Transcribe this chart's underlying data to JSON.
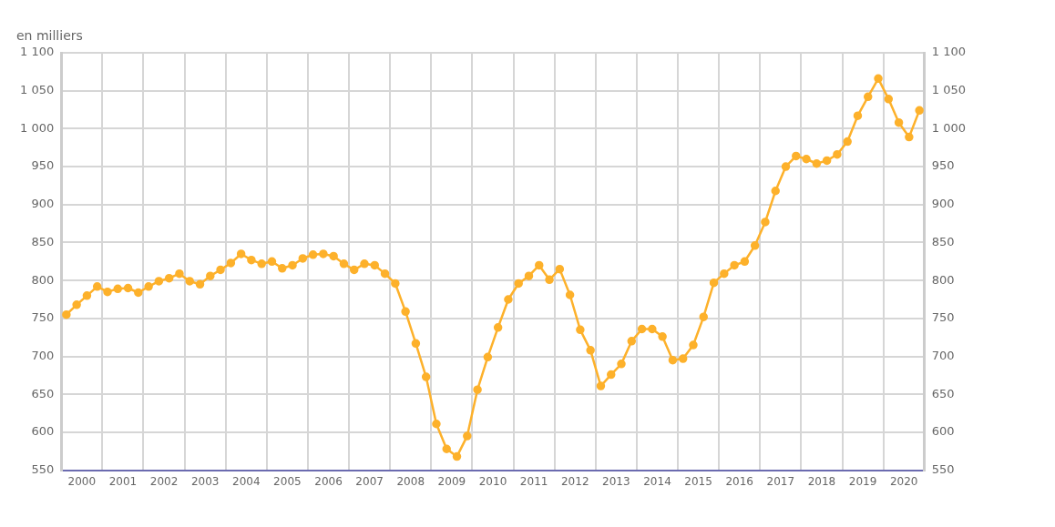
{
  "chart_data": {
    "type": "line",
    "ylabel": "en milliers",
    "x": [
      2000.125,
      2000.375,
      2000.625,
      2000.875,
      2001.125,
      2001.375,
      2001.625,
      2001.875,
      2002.125,
      2002.375,
      2002.625,
      2002.875,
      2003.125,
      2003.375,
      2003.625,
      2003.875,
      2004.125,
      2004.375,
      2004.625,
      2004.875,
      2005.125,
      2005.375,
      2005.625,
      2005.875,
      2006.125,
      2006.375,
      2006.625,
      2006.875,
      2007.125,
      2007.375,
      2007.625,
      2007.875,
      2008.125,
      2008.375,
      2008.625,
      2008.875,
      2009.125,
      2009.375,
      2009.625,
      2009.875,
      2010.125,
      2010.375,
      2010.625,
      2010.875,
      2011.125,
      2011.375,
      2011.625,
      2011.875,
      2012.125,
      2012.375,
      2012.625,
      2012.875,
      2013.125,
      2013.375,
      2013.625,
      2013.875,
      2014.125,
      2014.375,
      2014.625,
      2014.875,
      2015.125,
      2015.375,
      2015.625,
      2015.875,
      2016.125,
      2016.375,
      2016.625,
      2016.875,
      2017.125,
      2017.375,
      2017.625,
      2017.875,
      2018.125,
      2018.375,
      2018.625,
      2018.875,
      2019.125,
      2019.375,
      2019.625,
      2019.875,
      2020.125,
      2020.375,
      2020.625,
      2020.875
    ],
    "series": [
      {
        "color": "#fdb12b",
        "axis": "y",
        "values": [
          755,
          768,
          780,
          792,
          785,
          789,
          790,
          784,
          792,
          799,
          803,
          809,
          799,
          795,
          806,
          814,
          823,
          835,
          827,
          822,
          825,
          816,
          820,
          829,
          834,
          835,
          832,
          822,
          814,
          822,
          820,
          809,
          796,
          759,
          717,
          673,
          611,
          578,
          568,
          595,
          656,
          699,
          738,
          775,
          796,
          806,
          820,
          801,
          815,
          781,
          735,
          708,
          661,
          676,
          690,
          720,
          736,
          736,
          726,
          695,
          697,
          715,
          752,
          797,
          809,
          820,
          825,
          846,
          877,
          918,
          950,
          964,
          960,
          954,
          958,
          966,
          983,
          1017,
          1042,
          1066,
          1039,
          1008,
          989,
          1024
        ]
      }
    ],
    "xlim": [
      2000,
      2021
    ],
    "xticks": [
      {
        "value": 2000,
        "label": null
      },
      {
        "value": 2000.5,
        "label": "2000"
      },
      {
        "value": 2001,
        "label": null
      },
      {
        "value": 2001.5,
        "label": "2001"
      },
      {
        "value": 2002,
        "label": null
      },
      {
        "value": 2002.5,
        "label": "2002"
      },
      {
        "value": 2003,
        "label": null
      },
      {
        "value": 2003.5,
        "label": "2003"
      },
      {
        "value": 2004,
        "label": null
      },
      {
        "value": 2004.5,
        "label": "2004"
      },
      {
        "value": 2005,
        "label": null
      },
      {
        "value": 2005.5,
        "label": "2005"
      },
      {
        "value": 2006,
        "label": null
      },
      {
        "value": 2006.5,
        "label": "2006"
      },
      {
        "value": 2007,
        "label": null
      },
      {
        "value": 2007.5,
        "label": "2007"
      },
      {
        "value": 2008,
        "label": null
      },
      {
        "value": 2008.5,
        "label": "2008"
      },
      {
        "value": 2009,
        "label": null
      },
      {
        "value": 2009.5,
        "label": "2009"
      },
      {
        "value": 2010,
        "label": null
      },
      {
        "value": 2010.5,
        "label": "2010"
      },
      {
        "value": 2011,
        "label": null
      },
      {
        "value": 2011.5,
        "label": "2011"
      },
      {
        "value": 2012,
        "label": null
      },
      {
        "value": 2012.5,
        "label": "2012"
      },
      {
        "value": 2013,
        "label": null
      },
      {
        "value": 2013.5,
        "label": "2013"
      },
      {
        "value": 2014,
        "label": null
      },
      {
        "value": 2014.5,
        "label": "2014"
      },
      {
        "value": 2015,
        "label": null
      },
      {
        "value": 2015.5,
        "label": "2015"
      },
      {
        "value": 2016,
        "label": null
      },
      {
        "value": 2016.5,
        "label": "2016"
      },
      {
        "value": 2017,
        "label": null
      },
      {
        "value": 2017.5,
        "label": "2017"
      },
      {
        "value": 2018,
        "label": null
      },
      {
        "value": 2018.5,
        "label": "2018"
      },
      {
        "value": 2019,
        "label": null
      },
      {
        "value": 2019.5,
        "label": "2019"
      },
      {
        "value": 2020,
        "label": null
      },
      {
        "value": 2020.5,
        "label": "2020"
      },
      {
        "value": 2021,
        "label": null
      }
    ],
    "ylim": [
      550,
      1100
    ],
    "yticks": [
      550,
      600,
      650,
      700,
      750,
      800,
      850,
      900,
      950,
      {
        "value": 1000,
        "label": "1 000"
      },
      {
        "value": 1050,
        "label": "1 050"
      },
      {
        "value": 1100,
        "label": "1 100"
      }
    ],
    "y2lim": [
      550,
      1100
    ],
    "y2ticks": [
      550,
      600,
      650,
      700,
      750,
      800,
      850,
      900,
      950,
      {
        "value": 1000,
        "label": "1 000"
      },
      {
        "value": 1050,
        "label": "1 050"
      },
      {
        "value": 1100,
        "label": "1 100"
      }
    ],
    "grid": true,
    "legend": false,
    "marker": "circle",
    "line_style": "solid"
  }
}
